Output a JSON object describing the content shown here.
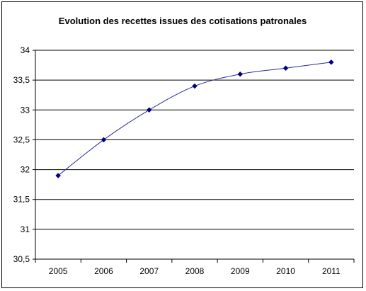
{
  "chart_data": {
    "type": "line",
    "title": "Evolution des recettes issues des cotisations patronales",
    "xlabel": "",
    "ylabel": "",
    "categories": [
      "2005",
      "2006",
      "2007",
      "2008",
      "2009",
      "2010",
      "2011"
    ],
    "values": [
      31.9,
      32.5,
      33.0,
      33.4,
      33.6,
      33.7,
      33.8
    ],
    "ylim": [
      30.5,
      34
    ],
    "yticks": [
      "30,5",
      "31",
      "31,5",
      "32",
      "32,5",
      "33",
      "33,5",
      "34"
    ],
    "grid": true,
    "legend": "none",
    "colors": {
      "line": "#2b2b9a",
      "marker": "#000080",
      "grid": "#000000"
    }
  }
}
